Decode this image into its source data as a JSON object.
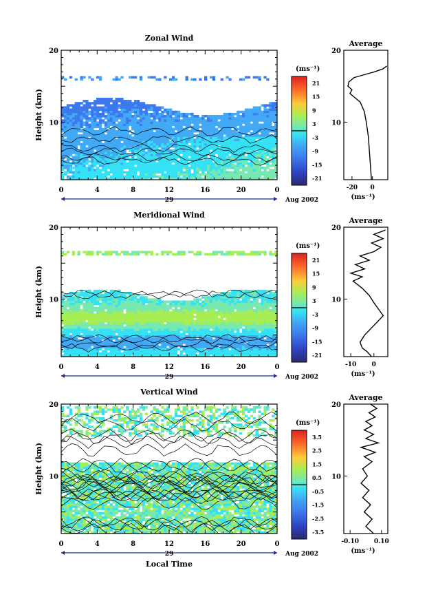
{
  "chart_data": [
    {
      "type": "heatmap",
      "title": "Zonal Wind",
      "ylabel": "Height (km)",
      "ylim": [
        2,
        20
      ],
      "yticks": [
        10,
        20
      ],
      "xlim": [
        0,
        24
      ],
      "xticks": [
        "0",
        "4",
        "8",
        "12",
        "16",
        "20",
        "0"
      ],
      "date_label": "29",
      "month_label": "Aug 2002",
      "colorbar": {
        "unit": "(ms⁻¹)",
        "ticks": [
          "21",
          "15",
          "9",
          "3",
          "-3",
          "-9",
          "-15",
          "-21"
        ],
        "range": [
          -24,
          24
        ]
      },
      "average": {
        "title": "Average",
        "unit": "(ms⁻¹)",
        "xticks": [
          "-20",
          "0"
        ],
        "xlim": [
          -28,
          15
        ],
        "yticks": [
          10,
          20
        ],
        "ylim": [
          2,
          20
        ],
        "profile": [
          [
            -1,
            2
          ],
          [
            -2,
            4
          ],
          [
            -3,
            6
          ],
          [
            -4,
            8
          ],
          [
            -6,
            10
          ],
          [
            -8,
            11.5
          ],
          [
            -12,
            12.8
          ],
          [
            -18,
            13.5
          ],
          [
            -22,
            14
          ],
          [
            -20,
            14.5
          ],
          [
            -24,
            15
          ],
          [
            -23,
            15.6
          ],
          [
            -18,
            16.2
          ],
          [
            -8,
            16.6
          ],
          [
            2,
            17
          ],
          [
            10,
            17.4
          ],
          [
            14,
            17.8
          ]
        ]
      }
    },
    {
      "type": "heatmap",
      "title": "Meridional Wind",
      "ylabel": "Height (km)",
      "ylim": [
        2,
        20
      ],
      "yticks": [
        10,
        20
      ],
      "xlim": [
        0,
        24
      ],
      "xticks": [
        "0",
        "4",
        "8",
        "12",
        "16",
        "20",
        "0"
      ],
      "date_label": "29",
      "month_label": "Aug 2002",
      "colorbar": {
        "unit": "(ms⁻¹)",
        "ticks": [
          "21",
          "15",
          "9",
          "3",
          "-3",
          "-9",
          "-15",
          "-21"
        ],
        "range": [
          -24,
          24
        ]
      },
      "average": {
        "title": "Average",
        "unit": "(ms⁻¹)",
        "xticks": [
          "-10",
          "0"
        ],
        "xlim": [
          -13,
          6
        ],
        "yticks": [
          10,
          20
        ],
        "ylim": [
          2,
          20
        ],
        "profile": [
          [
            -1,
            2
          ],
          [
            -3,
            2.7
          ],
          [
            -5,
            3.2
          ],
          [
            -6,
            4
          ],
          [
            -4,
            5
          ],
          [
            -1,
            6
          ],
          [
            2,
            7
          ],
          [
            4,
            7.7
          ],
          [
            2,
            8.6
          ],
          [
            0,
            9.5
          ],
          [
            -2,
            10.5
          ],
          [
            -5,
            11.5
          ],
          [
            -9,
            12.5
          ],
          [
            -5,
            13.1
          ],
          [
            -10,
            13.6
          ],
          [
            -4,
            14.2
          ],
          [
            -8,
            14.8
          ],
          [
            -2,
            15.4
          ],
          [
            -6,
            16
          ],
          [
            0,
            16.6
          ],
          [
            3,
            17.2
          ],
          [
            -1,
            17.8
          ],
          [
            4,
            18.4
          ],
          [
            0,
            19
          ],
          [
            5,
            19.6
          ]
        ]
      }
    },
    {
      "type": "heatmap",
      "title": "Vertical Wind",
      "ylabel": "Height (km)",
      "xlabel": "Local Time",
      "ylim": [
        2,
        20
      ],
      "yticks": [
        10,
        20
      ],
      "xlim": [
        0,
        24
      ],
      "xticks": [
        "0",
        "4",
        "8",
        "12",
        "16",
        "20",
        "0"
      ],
      "date_label": "29",
      "month_label": "Aug 2002",
      "colorbar": {
        "unit": "(ms⁻¹)",
        "ticks": [
          "3.5",
          "2.5",
          "1.5",
          "0.5",
          "-0.5",
          "-1.5",
          "-2.5",
          "-3.5"
        ],
        "range": [
          -4,
          4
        ]
      },
      "average": {
        "title": "Average",
        "unit": "(ms⁻¹)",
        "xticks": [
          "-0.10",
          "0.10"
        ],
        "xlim": [
          -0.14,
          0.14
        ],
        "yticks": [
          10,
          20
        ],
        "ylim": [
          2,
          20
        ],
        "profile": [
          [
            0.05,
            2
          ],
          [
            0.0,
            3
          ],
          [
            0.04,
            4
          ],
          [
            -0.01,
            5
          ],
          [
            0.03,
            6
          ],
          [
            -0.02,
            7
          ],
          [
            0.02,
            8
          ],
          [
            -0.03,
            9
          ],
          [
            0.01,
            10
          ],
          [
            -0.02,
            11
          ],
          [
            0.04,
            12
          ],
          [
            -0.01,
            12.7
          ],
          [
            0.06,
            13.3
          ],
          [
            -0.03,
            14
          ],
          [
            0.08,
            14.6
          ],
          [
            0.0,
            15.2
          ],
          [
            0.05,
            15.8
          ],
          [
            -0.01,
            16.4
          ],
          [
            0.04,
            17
          ],
          [
            0.0,
            17.6
          ],
          [
            0.06,
            18.2
          ],
          [
            0.02,
            18.8
          ],
          [
            0.07,
            19.4
          ],
          [
            0.03,
            20
          ]
        ]
      }
    }
  ]
}
